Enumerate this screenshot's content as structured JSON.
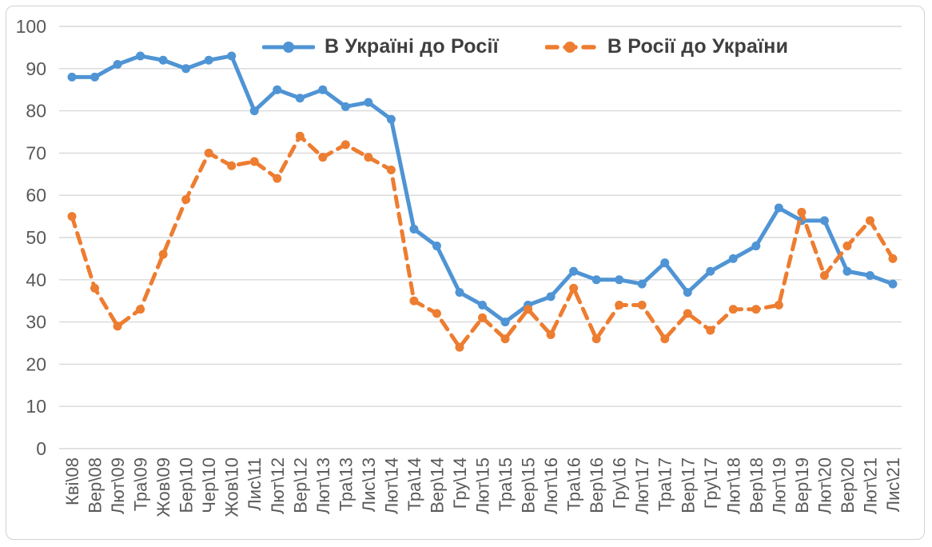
{
  "chart_data": {
    "type": "line",
    "title": "",
    "xlabel": "",
    "ylabel": "",
    "ylim": [
      0,
      100
    ],
    "yticks": [
      0,
      10,
      20,
      30,
      40,
      50,
      60,
      70,
      80,
      90,
      100
    ],
    "grid": true,
    "legend_position": "top-center",
    "categories": [
      "Кві\\08",
      "Вер\\08",
      "Лют\\09",
      "Тра\\09",
      "Жов\\09",
      "Бер\\10",
      "Чер\\10",
      "Жов\\10",
      "Лис\\11",
      "Лют\\12",
      "Вер\\12",
      "Лют\\13",
      "Тра\\13",
      "Лис\\13",
      "Лют\\14",
      "Тра\\14",
      "Вер\\14",
      "Гру\\14",
      "Лют\\15",
      "Тра\\15",
      "Вер\\15",
      "Лют\\16",
      "Тра\\16",
      "Вер\\16",
      "Гру\\16",
      "Лют\\17",
      "Тра\\17",
      "Вер\\17",
      "Гру\\17",
      "Лют\\18",
      "Вер\\18",
      "Лют\\19",
      "Вер\\19",
      "Лют\\20",
      "Вер\\20",
      "Лют\\21",
      "Лис\\21"
    ],
    "series": [
      {
        "name": "В Україні до Росії",
        "color": "#4f94d4",
        "line_style": "solid",
        "marker": "circle",
        "values": [
          88,
          88,
          91,
          93,
          92,
          90,
          92,
          93,
          80,
          85,
          83,
          85,
          81,
          82,
          78,
          52,
          48,
          37,
          34,
          30,
          34,
          36,
          42,
          40,
          40,
          39,
          44,
          37,
          42,
          45,
          48,
          57,
          54,
          54,
          42,
          41,
          39
        ]
      },
      {
        "name": "В Росії до України",
        "color": "#ed7d31",
        "line_style": "dashed",
        "marker": "circle",
        "values": [
          55,
          38,
          29,
          33,
          46,
          59,
          70,
          67,
          68,
          64,
          74,
          69,
          72,
          69,
          66,
          35,
          32,
          24,
          31,
          26,
          33,
          27,
          38,
          26,
          34,
          34,
          26,
          32,
          28,
          33,
          33,
          34,
          56,
          41,
          48,
          54,
          45
        ]
      }
    ]
  },
  "colors": {
    "gridline": "#d9d9d9",
    "axis_text": "#595959",
    "legend_text": "#3f3f3f",
    "frame_border": "#d2d2d2",
    "background": "#ffffff"
  }
}
